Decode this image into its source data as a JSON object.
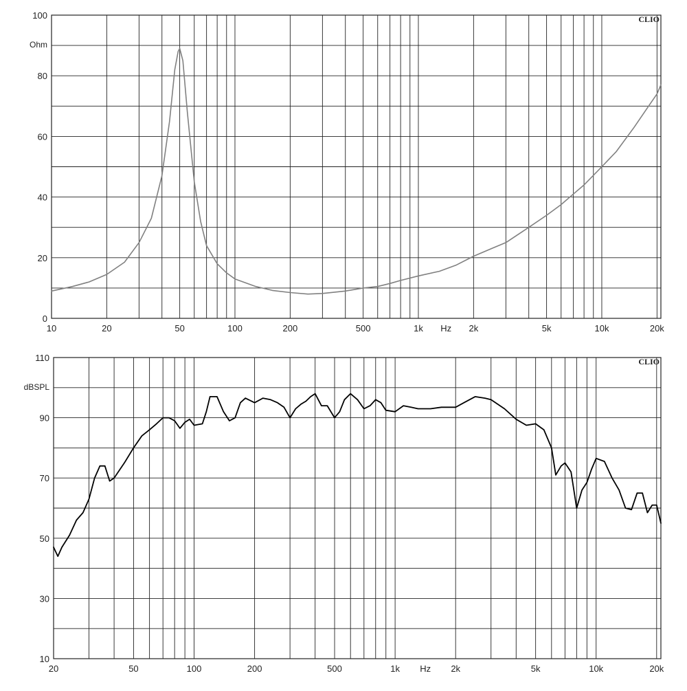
{
  "chart_data": [
    {
      "type": "line",
      "brand": "CLIO",
      "ylabel": "Ohm",
      "xlabel": "Hz",
      "x_scale": "log",
      "xlim": [
        10,
        21000
      ],
      "ylim": [
        0,
        100
      ],
      "grid": true,
      "x_tick_labels": [
        {
          "value": 10,
          "label": "10"
        },
        {
          "value": 20,
          "label": "20"
        },
        {
          "value": 50,
          "label": "50"
        },
        {
          "value": 100,
          "label": "100"
        },
        {
          "value": 200,
          "label": "200"
        },
        {
          "value": 500,
          "label": "500"
        },
        {
          "value": 1000,
          "label": "1k"
        },
        {
          "value": 2000,
          "label": "2k"
        },
        {
          "value": 5000,
          "label": "5k"
        },
        {
          "value": 10000,
          "label": "10k"
        },
        {
          "value": 20000,
          "label": "20k"
        }
      ],
      "y_tick_labels": [
        {
          "value": 0,
          "label": "0"
        },
        {
          "value": 20,
          "label": "20"
        },
        {
          "value": 40,
          "label": "40"
        },
        {
          "value": 60,
          "label": "60"
        },
        {
          "value": 80,
          "label": "80"
        },
        {
          "value": 100,
          "label": "100"
        }
      ],
      "series": [
        {
          "color": "#808080",
          "points": [
            [
              10,
              9
            ],
            [
              13,
              10.5
            ],
            [
              16,
              12
            ],
            [
              20,
              14.5
            ],
            [
              25,
              18.5
            ],
            [
              30,
              25
            ],
            [
              35,
              33
            ],
            [
              40,
              47
            ],
            [
              44,
              65
            ],
            [
              47,
              82
            ],
            [
              49,
              88
            ],
            [
              50,
              89
            ],
            [
              52,
              85
            ],
            [
              55,
              68
            ],
            [
              60,
              45
            ],
            [
              65,
              32
            ],
            [
              70,
              24
            ],
            [
              80,
              18
            ],
            [
              90,
              15
            ],
            [
              100,
              13
            ],
            [
              130,
              10.5
            ],
            [
              160,
              9.2
            ],
            [
              200,
              8.5
            ],
            [
              250,
              8
            ],
            [
              300,
              8.2
            ],
            [
              400,
              9
            ],
            [
              500,
              10
            ],
            [
              600,
              10.5
            ],
            [
              700,
              11.5
            ],
            [
              800,
              12.5
            ],
            [
              1000,
              14
            ],
            [
              1300,
              15.5
            ],
            [
              1600,
              17.5
            ],
            [
              2000,
              20.5
            ],
            [
              2500,
              23
            ],
            [
              3000,
              25
            ],
            [
              4000,
              30
            ],
            [
              5000,
              34
            ],
            [
              6000,
              37.5
            ],
            [
              7000,
              41
            ],
            [
              8000,
              44
            ],
            [
              10000,
              50
            ],
            [
              12000,
              55
            ],
            [
              15000,
              63
            ],
            [
              18000,
              70
            ],
            [
              20000,
              74
            ],
            [
              21000,
              77
            ]
          ]
        }
      ]
    },
    {
      "type": "line",
      "brand": "CLIO",
      "ylabel": "dBSPL",
      "xlabel": "Hz",
      "x_scale": "log",
      "xlim": [
        20,
        21000
      ],
      "ylim": [
        10,
        110
      ],
      "grid": true,
      "x_tick_labels": [
        {
          "value": 20,
          "label": "20"
        },
        {
          "value": 50,
          "label": "50"
        },
        {
          "value": 100,
          "label": "100"
        },
        {
          "value": 200,
          "label": "200"
        },
        {
          "value": 500,
          "label": "500"
        },
        {
          "value": 1000,
          "label": "1k"
        },
        {
          "value": 2000,
          "label": "2k"
        },
        {
          "value": 5000,
          "label": "5k"
        },
        {
          "value": 10000,
          "label": "10k"
        },
        {
          "value": 20000,
          "label": "20k"
        }
      ],
      "y_tick_labels": [
        {
          "value": 10,
          "label": "10"
        },
        {
          "value": 30,
          "label": "30"
        },
        {
          "value": 50,
          "label": "50"
        },
        {
          "value": 70,
          "label": "70"
        },
        {
          "value": 90,
          "label": "90"
        },
        {
          "value": 110,
          "label": "110"
        }
      ],
      "series": [
        {
          "color": "#000000",
          "points": [
            [
              20,
              47
            ],
            [
              21,
              44
            ],
            [
              22,
              47
            ],
            [
              24,
              51
            ],
            [
              26,
              56
            ],
            [
              28,
              58.5
            ],
            [
              30,
              63
            ],
            [
              32,
              70
            ],
            [
              34,
              74
            ],
            [
              36,
              74
            ],
            [
              38,
              69
            ],
            [
              40,
              70
            ],
            [
              45,
              75
            ],
            [
              50,
              80
            ],
            [
              55,
              84
            ],
            [
              60,
              86
            ],
            [
              65,
              88
            ],
            [
              70,
              90
            ],
            [
              75,
              90
            ],
            [
              80,
              89
            ],
            [
              85,
              86.5
            ],
            [
              90,
              88.5
            ],
            [
              95,
              89.5
            ],
            [
              100,
              87.5
            ],
            [
              110,
              88
            ],
            [
              115,
              92
            ],
            [
              120,
              97
            ],
            [
              130,
              97
            ],
            [
              140,
              92
            ],
            [
              150,
              89
            ],
            [
              160,
              90
            ],
            [
              170,
              95
            ],
            [
              180,
              96.5
            ],
            [
              200,
              95
            ],
            [
              220,
              96.5
            ],
            [
              240,
              96
            ],
            [
              260,
              95
            ],
            [
              280,
              93.5
            ],
            [
              300,
              90
            ],
            [
              320,
              93
            ],
            [
              340,
              94.5
            ],
            [
              360,
              95.5
            ],
            [
              380,
              97
            ],
            [
              400,
              98
            ],
            [
              430,
              94
            ],
            [
              460,
              94
            ],
            [
              500,
              90
            ],
            [
              530,
              92
            ],
            [
              560,
              96
            ],
            [
              600,
              98
            ],
            [
              650,
              96
            ],
            [
              700,
              93
            ],
            [
              750,
              94
            ],
            [
              800,
              96
            ],
            [
              850,
              95
            ],
            [
              900,
              92.5
            ],
            [
              1000,
              92
            ],
            [
              1100,
              94
            ],
            [
              1200,
              93.5
            ],
            [
              1300,
              93
            ],
            [
              1500,
              93
            ],
            [
              1700,
              93.5
            ],
            [
              2000,
              93.5
            ],
            [
              2200,
              95
            ],
            [
              2500,
              97
            ],
            [
              2800,
              96.5
            ],
            [
              3000,
              96
            ],
            [
              3500,
              93
            ],
            [
              4000,
              89.5
            ],
            [
              4500,
              87.5
            ],
            [
              5000,
              88
            ],
            [
              5500,
              86
            ],
            [
              6000,
              80
            ],
            [
              6300,
              71
            ],
            [
              6700,
              74
            ],
            [
              7000,
              75
            ],
            [
              7500,
              72
            ],
            [
              8000,
              60
            ],
            [
              8500,
              66
            ],
            [
              9000,
              68.5
            ],
            [
              9500,
              73
            ],
            [
              10000,
              76.5
            ],
            [
              11000,
              75.5
            ],
            [
              12000,
              70
            ],
            [
              13000,
              66
            ],
            [
              14000,
              60
            ],
            [
              15000,
              59.5
            ],
            [
              16000,
              65
            ],
            [
              17000,
              65
            ],
            [
              18000,
              58.5
            ],
            [
              19000,
              61
            ],
            [
              20000,
              61
            ],
            [
              21000,
              55
            ]
          ]
        }
      ]
    }
  ]
}
